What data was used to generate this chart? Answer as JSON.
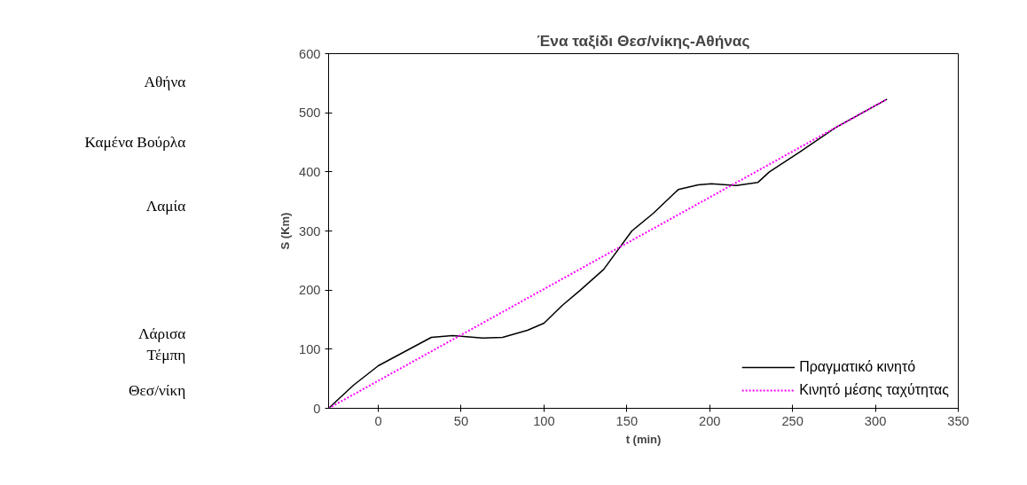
{
  "chart_data": {
    "type": "line",
    "title": "Ένα ταξίδι Θεσ/νίκης-Αθήνας",
    "xlabel": "t (min)",
    "ylabel": "S (Km)",
    "xlim": [
      -30,
      350
    ],
    "xticks": [
      0,
      50,
      100,
      150,
      200,
      250,
      300,
      350
    ],
    "ylim": [
      0,
      600
    ],
    "yticks": [
      0,
      100,
      200,
      300,
      400,
      500,
      600
    ],
    "grid": false,
    "legend": "bottom right",
    "marker": "none",
    "series": [
      {
        "name": "Πραγματικό κινητό",
        "color": "#000000",
        "line_style": "solid",
        "x": [
          -30,
          -15,
          0,
          20,
          32,
          45,
          63,
          75,
          90,
          100,
          111,
          122,
          136,
          153,
          166,
          181,
          193,
          201,
          216,
          229,
          236,
          254,
          276,
          307
        ],
        "values": [
          0,
          39,
          72,
          102,
          120,
          123,
          119,
          120,
          132,
          144,
          174,
          200,
          235,
          300,
          330,
          370,
          378,
          380,
          377,
          382,
          400,
          433,
          475,
          523
        ]
      },
      {
        "name": "Κινητό μέσης ταχύτητας",
        "color": "#ff00ff",
        "line_style": "dotted",
        "x": [
          -30,
          307
        ],
        "values": [
          0,
          523
        ]
      }
    ],
    "annotations": [
      "Αθήνα",
      "Καμένα Βούρλα",
      "Λαμία",
      "Λάρισα",
      "Τέμπη",
      "Θεσ/νίκη"
    ]
  }
}
